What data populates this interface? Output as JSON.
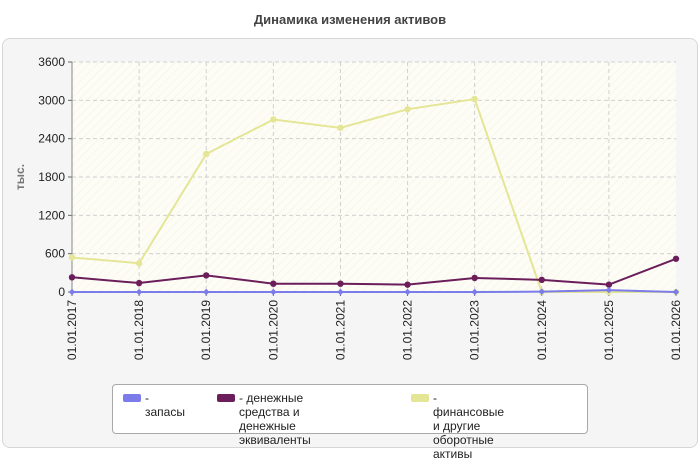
{
  "page_title": "Динамика изменения активов",
  "chart_data": {
    "type": "line",
    "title": "Динамика изменения активов",
    "ylabel": "тыс.",
    "xlabel": "",
    "categories": [
      "01.01.2017",
      "01.01.2018",
      "01.01.2019",
      "01.01.2020",
      "01.01.2021",
      "01.01.2022",
      "01.01.2023",
      "01.01.2024",
      "01.01.2025",
      "01.01.2026"
    ],
    "ylim": [
      0,
      3600
    ],
    "yticks": [
      0,
      600,
      1200,
      1800,
      2400,
      3000,
      3600
    ],
    "grid": true,
    "legend_position": "bottom",
    "series": [
      {
        "name": "- запасы",
        "color": "#7b7bea",
        "values": [
          0,
          0,
          0,
          0,
          0,
          0,
          0,
          5,
          30,
          0
        ]
      },
      {
        "name": "- денежные средства и\nденежные эквиваленты",
        "color": "#6b1e5a",
        "values": [
          230,
          140,
          260,
          130,
          130,
          115,
          220,
          190,
          115,
          520
        ]
      },
      {
        "name": "- финансовые и другие\nоборотные активы",
        "color": "#e5e596",
        "values": [
          540,
          450,
          2160,
          2700,
          2570,
          2860,
          3020,
          0,
          0,
          0
        ]
      }
    ]
  }
}
